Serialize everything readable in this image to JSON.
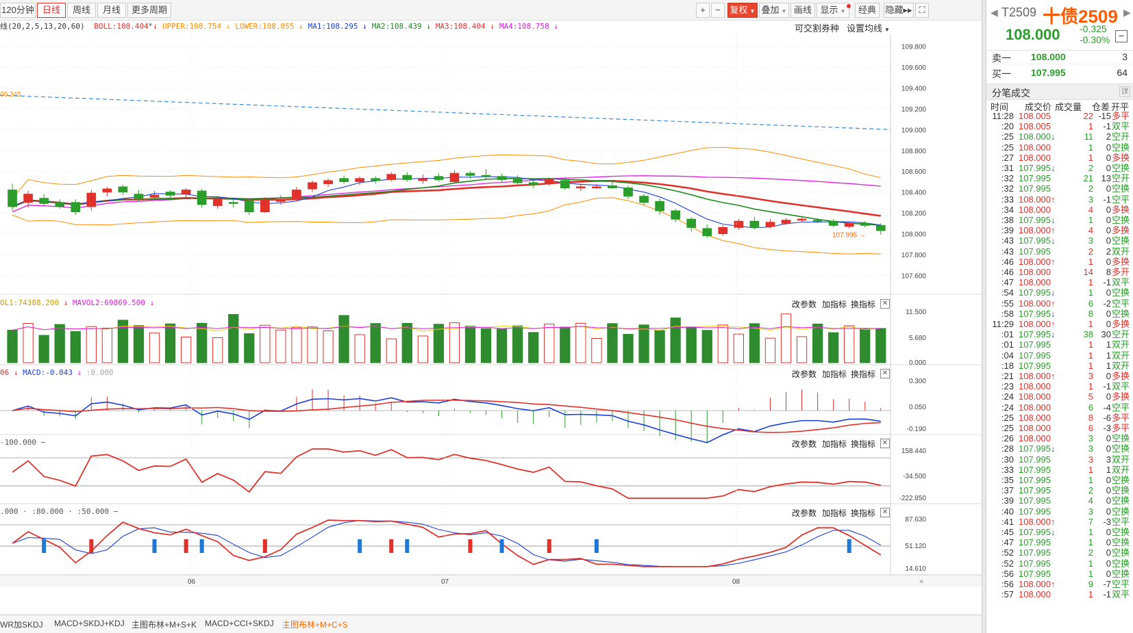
{
  "toolbar": {
    "left_items": [
      "120分钟",
      "日线",
      "周线",
      "月线",
      "更多周期"
    ],
    "active": "日线",
    "right_items": [
      "+",
      "−",
      "复权",
      "叠加",
      "画线",
      "显示",
      "经典",
      "隐藏▸▸",
      "⛶"
    ]
  },
  "indicator_line": {
    "prefix": "线(20,2,5,13,20,60)",
    "items": [
      {
        "t": "BOLL:108.404",
        "c": "#e0312b",
        "a": "↓"
      },
      {
        "t": "UPPER:108.754",
        "c": "#ff8c00",
        "a": "↓"
      },
      {
        "t": "LOWER:108.055",
        "c": "#ff8c00",
        "a": "↓"
      },
      {
        "t": "MA1:108.295",
        "c": "#1a3fd8",
        "a": "↓"
      },
      {
        "t": "MA2:108.439",
        "c": "#1a8a1a",
        "a": "↓"
      },
      {
        "t": "MA3:108.404",
        "c": "#e0312b",
        "a": "↓"
      },
      {
        "t": "MA4:108.758",
        "c": "#e11be1",
        "a": "↓"
      }
    ],
    "right1": "可交割券种",
    "right2": "设置均线"
  },
  "main": {
    "yticks": [
      "109.800",
      "109.600",
      "109.400",
      "109.200",
      "109.000",
      "108.800",
      "108.600",
      "108.400",
      "108.200",
      "108.000",
      "107.800",
      "107.600"
    ],
    "left_label": "09.345",
    "last_label": "107.995"
  },
  "vol": {
    "title_a": "OL1:74388.200",
    "title_b": "MAVOL2:69869.500",
    "yticks": [
      "11.500",
      "5.680",
      "0.000"
    ]
  },
  "macd": {
    "title_a": "06",
    "title_b": "MACD:-0.043",
    "title_c": ":0.000",
    "yticks": [
      "0.300",
      "0.050",
      "-0.190"
    ]
  },
  "cci": {
    "title": "-100.000",
    "yticks": [
      "158.440",
      "-34.500",
      "-222.850"
    ]
  },
  "kdj": {
    "title": ".000 · :80.000 · :50.000",
    "yticks": [
      "87.630",
      "51.120",
      "14.610"
    ]
  },
  "panel_buttons": [
    "改参数",
    "加指标",
    "换指标"
  ],
  "xaxis": [
    "06",
    "07",
    "08"
  ],
  "tabs": [
    "WR加SKDJ",
    "MACD+SKDJ+KDJ",
    "主图布林+M+S+K",
    "MACD+CCI+SKDJ",
    "主图布林+M+C+S"
  ],
  "active_tab": "主图布林+M+C+S",
  "quote": {
    "code": "T2509",
    "name": "十债2509",
    "price": "108.000",
    "chg": "-0.325",
    "pct": "-0.30%",
    "sell_label": "卖一",
    "sell_price": "108.000",
    "sell_vol": "3",
    "buy_label": "买一",
    "buy_price": "107.995",
    "buy_vol": "64",
    "ticks_title": "分笔成交",
    "detail": "详",
    "cols": [
      "时间",
      "成交价",
      "成交量",
      "仓差",
      "开平"
    ]
  },
  "ticks": [
    [
      "11:28",
      "108.005",
      "",
      "22",
      "-15",
      "多平"
    ],
    [
      ":20",
      "108.005",
      "",
      "1",
      "-1",
      "双平"
    ],
    [
      ":25",
      "108.000",
      "↓",
      "11",
      "2",
      "空开"
    ],
    [
      ":25",
      "108.000",
      "",
      "1",
      "0",
      "空换"
    ],
    [
      ":27",
      "108.000",
      "",
      "1",
      "0",
      "多换"
    ],
    [
      ":31",
      "107.995",
      "↓",
      "2",
      "0",
      "空换"
    ],
    [
      ":32",
      "107.995",
      "",
      "21",
      "13",
      "空开"
    ],
    [
      ":32",
      "107.995",
      "",
      "2",
      "0",
      "空换"
    ],
    [
      ":33",
      "108.000",
      "↑",
      "3",
      "-1",
      "空平"
    ],
    [
      ":34",
      "108.000",
      "",
      "4",
      "0",
      "多换"
    ],
    [
      ":38",
      "107.995",
      "↓",
      "1",
      "0",
      "空换"
    ],
    [
      ":39",
      "108.000",
      "↑",
      "4",
      "0",
      "多换"
    ],
    [
      ":43",
      "107.995",
      "↓",
      "3",
      "0",
      "空换"
    ],
    [
      ":43",
      "107.995",
      "",
      "2",
      "2",
      "双开"
    ],
    [
      ":46",
      "108.000",
      "↑",
      "1",
      "0",
      "多换"
    ],
    [
      ":46",
      "108.000",
      "",
      "14",
      "8",
      "多开"
    ],
    [
      ":47",
      "108.000",
      "",
      "1",
      "-1",
      "双平"
    ],
    [
      ":54",
      "107.995",
      "↓",
      "1",
      "0",
      "空换"
    ],
    [
      ":55",
      "108.000",
      "↑",
      "6",
      "-2",
      "空平"
    ],
    [
      ":58",
      "107.995",
      "↓",
      "8",
      "0",
      "空换"
    ],
    [
      "11:29",
      "108.000",
      "↑",
      "1",
      "0",
      "多换"
    ],
    [
      ":01",
      "107.995",
      "↓",
      "38",
      "30",
      "空开"
    ],
    [
      ":01",
      "107.995",
      "",
      "1",
      "1",
      "双开"
    ],
    [
      ":04",
      "107.995",
      "",
      "1",
      "1",
      "双开"
    ],
    [
      ":18",
      "107.995",
      "",
      "1",
      "1",
      "双开"
    ],
    [
      ":21",
      "108.000",
      "↑",
      "3",
      "0",
      "多换"
    ],
    [
      ":23",
      "108.000",
      "",
      "1",
      "-1",
      "双平"
    ],
    [
      ":24",
      "108.000",
      "",
      "5",
      "0",
      "多换"
    ],
    [
      ":24",
      "108.000",
      "",
      "6",
      "-4",
      "空平"
    ],
    [
      ":25",
      "108.000",
      "",
      "8",
      "-6",
      "多平"
    ],
    [
      ":25",
      "108.000",
      "",
      "6",
      "-3",
      "多平"
    ],
    [
      ":26",
      "108.000",
      "",
      "3",
      "0",
      "空换"
    ],
    [
      ":28",
      "107.995",
      "↓",
      "3",
      "0",
      "空换"
    ],
    [
      ":30",
      "107.995",
      "",
      "3",
      "3",
      "双开"
    ],
    [
      ":33",
      "107.995",
      "",
      "1",
      "1",
      "双开"
    ],
    [
      ":35",
      "107.995",
      "",
      "1",
      "0",
      "空换"
    ],
    [
      ":37",
      "107.995",
      "",
      "2",
      "0",
      "空换"
    ],
    [
      ":39",
      "107.995",
      "",
      "4",
      "0",
      "空换"
    ],
    [
      ":40",
      "107.995",
      "",
      "3",
      "0",
      "空换"
    ],
    [
      ":41",
      "108.000",
      "↑",
      "7",
      "-3",
      "空平"
    ],
    [
      ":45",
      "107.995",
      "↓",
      "1",
      "0",
      "空换"
    ],
    [
      ":47",
      "107.995",
      "",
      "1",
      "0",
      "空换"
    ],
    [
      ":52",
      "107.995",
      "",
      "2",
      "0",
      "空换"
    ],
    [
      ":52",
      "107.995",
      "",
      "1",
      "0",
      "空换"
    ],
    [
      ":56",
      "107.995",
      "",
      "1",
      "0",
      "空换"
    ],
    [
      ":56",
      "108.000",
      "↑",
      "9",
      "-7",
      "空平"
    ],
    [
      ":57",
      "108.000",
      "",
      "1",
      "-1",
      "双平"
    ]
  ],
  "chart_data": {
    "type": "candlestick",
    "ylim": [
      107.55,
      109.85
    ],
    "candles": [
      [
        108.42,
        108.26,
        108.48,
        108.22
      ],
      [
        108.3,
        108.38,
        108.41,
        108.25
      ],
      [
        108.34,
        108.29,
        108.38,
        108.26
      ],
      [
        108.3,
        108.26,
        108.33,
        108.24
      ],
      [
        108.3,
        108.21,
        108.33,
        108.18
      ],
      [
        108.26,
        108.39,
        108.42,
        108.22
      ],
      [
        108.4,
        108.43,
        108.45,
        108.36
      ],
      [
        108.45,
        108.4,
        108.47,
        108.37
      ],
      [
        108.38,
        108.34,
        108.42,
        108.31
      ],
      [
        108.35,
        108.37,
        108.41,
        108.33
      ],
      [
        108.4,
        108.37,
        108.42,
        108.32
      ],
      [
        108.38,
        108.42,
        108.44,
        108.35
      ],
      [
        108.41,
        108.28,
        108.43,
        108.25
      ],
      [
        108.27,
        108.33,
        108.35,
        108.24
      ],
      [
        108.3,
        108.29,
        108.33,
        108.25
      ],
      [
        108.32,
        108.21,
        108.33,
        108.18
      ],
      [
        108.21,
        108.33,
        108.35,
        108.2
      ],
      [
        108.32,
        108.32,
        108.37,
        108.28
      ],
      [
        108.33,
        108.42,
        108.45,
        108.31
      ],
      [
        108.43,
        108.49,
        108.51,
        108.4
      ],
      [
        108.48,
        108.51,
        108.53,
        108.45
      ],
      [
        108.53,
        108.5,
        108.56,
        108.48
      ],
      [
        108.5,
        108.53,
        108.55,
        108.47
      ],
      [
        108.53,
        108.51,
        108.55,
        108.48
      ],
      [
        108.52,
        108.57,
        108.59,
        108.5
      ],
      [
        108.56,
        108.52,
        108.59,
        108.5
      ],
      [
        108.51,
        108.53,
        108.57,
        108.48
      ],
      [
        108.55,
        108.52,
        108.58,
        108.5
      ],
      [
        108.5,
        108.58,
        108.61,
        108.48
      ],
      [
        108.58,
        108.56,
        108.6,
        108.53
      ],
      [
        108.56,
        108.55,
        108.62,
        108.52
      ],
      [
        108.55,
        108.52,
        108.58,
        108.49
      ],
      [
        108.53,
        108.49,
        108.56,
        108.46
      ],
      [
        108.49,
        108.47,
        108.52,
        108.44
      ],
      [
        108.48,
        108.52,
        108.54,
        108.46
      ],
      [
        108.51,
        108.44,
        108.54,
        108.42
      ],
      [
        108.44,
        108.45,
        108.48,
        108.41
      ],
      [
        108.45,
        108.45,
        108.48,
        108.43
      ],
      [
        108.46,
        108.44,
        108.5,
        108.43
      ],
      [
        108.44,
        108.36,
        108.46,
        108.33
      ],
      [
        108.36,
        108.3,
        108.38,
        108.27
      ],
      [
        108.31,
        108.22,
        108.34,
        108.18
      ],
      [
        108.22,
        108.14,
        108.24,
        108.11
      ],
      [
        108.14,
        108.06,
        108.16,
        108.02
      ],
      [
        108.05,
        107.98,
        108.09,
        107.96
      ],
      [
        108.0,
        108.06,
        108.08,
        107.98
      ],
      [
        108.06,
        108.12,
        108.14,
        108.04
      ],
      [
        108.12,
        108.06,
        108.16,
        108.04
      ],
      [
        108.07,
        108.11,
        108.14,
        108.05
      ],
      [
        108.1,
        108.13,
        108.15,
        108.09
      ],
      [
        108.13,
        108.14,
        108.16,
        108.11
      ],
      [
        108.13,
        108.12,
        108.15,
        108.1
      ],
      [
        108.12,
        108.08,
        108.14,
        108.06
      ],
      [
        108.07,
        108.1,
        108.11,
        108.05
      ],
      [
        108.1,
        108.08,
        108.12,
        108.06
      ],
      [
        108.08,
        108.03,
        108.1,
        107.99
      ]
    ],
    "series": [
      {
        "name": "MA4",
        "color": "#e11be1"
      },
      {
        "name": "MA3",
        "color": "#e0312b"
      },
      {
        "name": "MA2",
        "color": "#1a8a1a"
      },
      {
        "name": "MA1",
        "color": "#1a3fd8"
      }
    ]
  }
}
